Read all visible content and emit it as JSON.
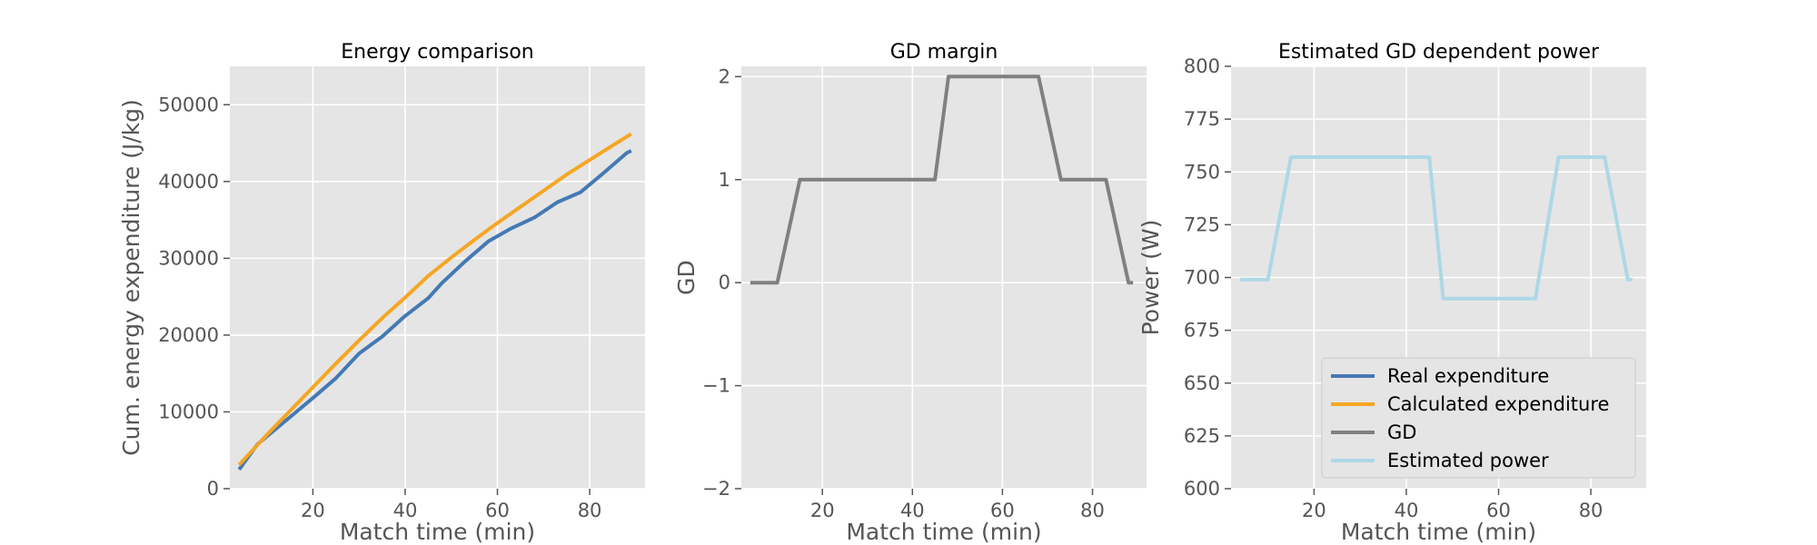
{
  "chart_data": [
    {
      "type": "line",
      "title": "Energy comparison",
      "xlabel": "Match time (min)",
      "ylabel": "Cum. energy expenditure (J/kg)",
      "xlim": [
        2,
        92
      ],
      "ylim": [
        0,
        55000
      ],
      "xticks": [
        20,
        40,
        60,
        80
      ],
      "xtick_labels": [
        "20",
        "40",
        "60",
        "80"
      ],
      "yticks": [
        0,
        10000,
        20000,
        30000,
        40000,
        50000
      ],
      "ytick_labels": [
        "0",
        "10000",
        "20000",
        "30000",
        "40000",
        "50000"
      ],
      "grid": true,
      "series": [
        {
          "name": "Real expenditure",
          "color": "#4479b4",
          "x": [
            4,
            8,
            15,
            20,
            25,
            30,
            35,
            40,
            45,
            48,
            53,
            58,
            63,
            68,
            73,
            78,
            83,
            88,
            89
          ],
          "y": [
            2500,
            5800,
            9300,
            11800,
            14400,
            17600,
            19800,
            22500,
            24800,
            26800,
            29600,
            32200,
            33900,
            35300,
            37300,
            38600,
            41100,
            43700,
            44000
          ]
        },
        {
          "name": "Calculated expenditure",
          "color": "#f5a623",
          "x": [
            4,
            10,
            15,
            20,
            25,
            30,
            35,
            40,
            45,
            50,
            55,
            60,
            65,
            70,
            75,
            80,
            85,
            89
          ],
          "y": [
            3100,
            7000,
            10100,
            13200,
            16300,
            19300,
            22200,
            24900,
            27700,
            30100,
            32400,
            34600,
            36700,
            38800,
            40900,
            42800,
            44700,
            46200
          ]
        }
      ]
    },
    {
      "type": "line",
      "title": "GD margin",
      "xlabel": "Match time (min)",
      "ylabel": "GD",
      "xlim": [
        2,
        92
      ],
      "ylim": [
        -2,
        2.1
      ],
      "xticks": [
        20,
        40,
        60,
        80
      ],
      "xtick_labels": [
        "20",
        "40",
        "60",
        "80"
      ],
      "yticks": [
        -2,
        -1,
        0,
        1,
        2
      ],
      "ytick_labels": [
        "−2",
        "−1",
        "0",
        "1",
        "2"
      ],
      "grid": true,
      "series": [
        {
          "name": "GD",
          "color": "#808080",
          "x": [
            4,
            10,
            15,
            45,
            48,
            68,
            73,
            83,
            88,
            89
          ],
          "y": [
            0,
            0,
            1,
            1,
            2,
            2,
            1,
            1,
            0,
            0
          ]
        }
      ]
    },
    {
      "type": "line",
      "title": "Estimated GD dependent power",
      "xlabel": "Match time (min)",
      "ylabel": "Power (W)",
      "xlim": [
        2,
        92
      ],
      "ylim": [
        600,
        800
      ],
      "xticks": [
        20,
        40,
        60,
        80
      ],
      "xtick_labels": [
        "20",
        "40",
        "60",
        "80"
      ],
      "yticks": [
        600,
        625,
        650,
        675,
        700,
        725,
        750,
        775,
        800
      ],
      "ytick_labels": [
        "600",
        "625",
        "650",
        "675",
        "700",
        "725",
        "750",
        "775",
        "800"
      ],
      "grid": true,
      "legend_position": "bottom-right",
      "legend": [
        {
          "name": "Real expenditure",
          "color": "#4479b4"
        },
        {
          "name": "Calculated expenditure",
          "color": "#f5a623"
        },
        {
          "name": "GD",
          "color": "#808080"
        },
        {
          "name": "Estimated power",
          "color": "#add8e6"
        }
      ],
      "series": [
        {
          "name": "Estimated power",
          "color": "#add8e6",
          "x": [
            4,
            10,
            15,
            45,
            48,
            68,
            73,
            83,
            88,
            89
          ],
          "y": [
            699,
            699,
            757,
            757,
            690,
            690,
            757,
            757,
            699,
            699
          ]
        }
      ]
    }
  ]
}
